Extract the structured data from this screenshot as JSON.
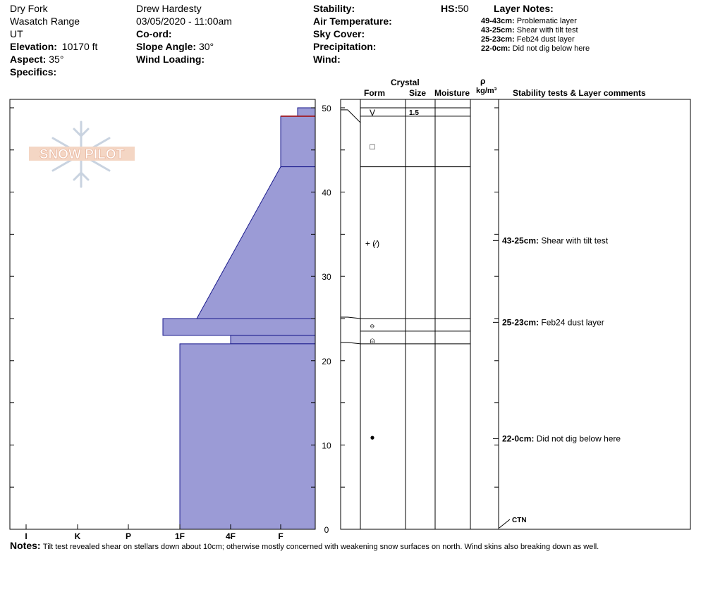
{
  "header": {
    "location": "Dry Fork",
    "range": "Wasatch Range",
    "state": "UT",
    "elevation_label": "Elevation:",
    "elevation_value": "10170 ft",
    "aspect_label": "Aspect:",
    "aspect_value": "35°",
    "specifics_label": "Specifics:",
    "observer": "Drew Hardesty",
    "datetime": "03/05/2020 - 11:00am",
    "coord_label": "Co-ord:",
    "slope_label": "Slope Angle:",
    "slope_value": "30°",
    "wind_loading_label": "Wind Loading:",
    "stability_label": "Stability:",
    "air_temp_label": "Air Temperature:",
    "sky_label": "Sky Cover:",
    "precip_label": "Precipitation:",
    "wind_label": "Wind:",
    "hs_label": "HS:",
    "hs_value": "50",
    "layer_notes_title": "Layer Notes:"
  },
  "layer_notes": [
    {
      "range": "49-43cm:",
      "text": "Problematic layer"
    },
    {
      "range": "43-25cm:",
      "text": "Shear with tilt test"
    },
    {
      "range": "25-23cm:",
      "text": "Feb24 dust layer"
    },
    {
      "range": "22-0cm:",
      "text": "Did not dig below here"
    }
  ],
  "logo_text": "SNOW PILOT",
  "columns": {
    "crystal": "Crystal",
    "form": "Form",
    "size": "Size",
    "moisture": "Moisture",
    "rho": "ρ",
    "density_unit": "kg/m³",
    "comments": "Stability tests & Layer comments"
  },
  "notes_label": "Notes:",
  "notes_text": "Tilt test revealed shear on stellars down about 10cm; otherwise mostly concerned with weakening snow surfaces on north.  Wind skins also breaking down as well.",
  "chart_data": {
    "type": "snow-profile",
    "depth_axis": {
      "min": 0,
      "max": 51,
      "ticks": [
        0,
        10,
        20,
        30,
        40,
        50
      ]
    },
    "hardness_axis": {
      "categories": [
        "I",
        "K",
        "P",
        "1F",
        "4F",
        "F"
      ]
    },
    "hardness_profile": [
      {
        "top": 50,
        "bottom": 49,
        "hardness": "F+"
      },
      {
        "top": 49,
        "bottom": 43,
        "hardness": "F"
      },
      {
        "top": 43,
        "bottom": 25,
        "hardness": "4F",
        "top_hardness": "F",
        "bottom_hardness": "1F+"
      },
      {
        "top": 25,
        "bottom": 23,
        "hardness": "1F-"
      },
      {
        "top": 23,
        "bottom": 22,
        "hardness": "4F"
      },
      {
        "top": 22,
        "bottom": 0,
        "hardness": "1F"
      }
    ],
    "crust_line_depth": 49,
    "grain_forms": [
      {
        "depth": 49.5,
        "symbol": "V",
        "size": "1.5"
      },
      {
        "depth": 45.5,
        "symbol": "□"
      },
      {
        "depth": 34,
        "symbol": "+ (⁄)"
      },
      {
        "depth": 24.3,
        "symbol": "⦵"
      },
      {
        "depth": 22.5,
        "symbol": "⍝"
      },
      {
        "depth": 11,
        "symbol": "●"
      }
    ],
    "layer_boundaries": [
      50,
      49,
      43,
      25,
      23.5,
      22
    ],
    "comments": [
      {
        "depth": 34,
        "range": "43-25cm:",
        "text": "Shear with tilt test"
      },
      {
        "depth": 24.3,
        "range": "25-23cm:",
        "text": "Feb24 dust layer"
      },
      {
        "depth": 10.5,
        "range": "22-0cm:",
        "text": "Did not dig below here"
      }
    ],
    "test_result": {
      "depth": 0.5,
      "label": "CTN"
    }
  }
}
